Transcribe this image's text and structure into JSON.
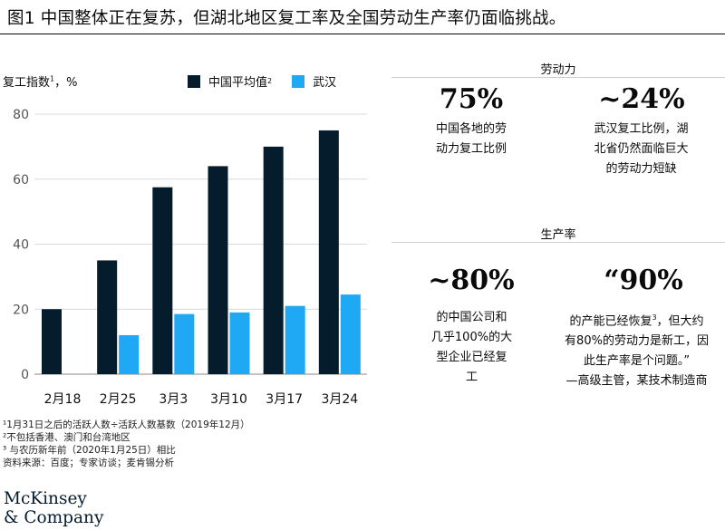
{
  "title": "图1  中国整体正在复苏，但湖北地区复工率及全国劳动生产率仍面临挑战。",
  "chart_data": {
    "type": "bar",
    "ylabel": "复工指数",
    "ylabel_sup": "1",
    "ylabel_unit": "，%",
    "categories": [
      "2月18",
      "2月25",
      "3月3",
      "3月10",
      "3月17",
      "3月24"
    ],
    "series": [
      {
        "name": "中国平均值",
        "name_sup": "2",
        "color": "#051c2c",
        "values": [
          20,
          35,
          57.5,
          64,
          70,
          75
        ]
      },
      {
        "name": "武汉",
        "color": "#1fa9f5",
        "values": [
          null,
          12,
          18.5,
          19,
          21,
          24.5
        ]
      }
    ],
    "ylim": [
      0,
      80
    ],
    "yticks": [
      0,
      20,
      40,
      60,
      80
    ],
    "grid": true,
    "legend": "top"
  },
  "panel": {
    "labor": {
      "heading": "劳动力",
      "stats": [
        {
          "value": "75%",
          "lines": [
            "中国各地的劳",
            "动力复工比例"
          ]
        },
        {
          "value": "~24%",
          "lines": [
            "武汉复工比例，湖",
            "北省仍然面临巨大",
            "的劳动力短缺"
          ]
        }
      ]
    },
    "productivity": {
      "heading": "生产率",
      "stats": [
        {
          "value": "~80%",
          "lines": [
            "的中国公司和",
            "几乎100%的大",
            "型企业已经复",
            "工"
          ]
        },
        {
          "value": "“90%",
          "lines": [
            "的产能已经恢复",
            "有80%的劳动力是新工，因",
            "此生产率是个问题。”",
            "—高级主管，某技术制造商"
          ],
          "line0_sup": "3",
          "line0_tail": "，但大约"
        }
      ]
    }
  },
  "footnotes": [
    "¹1月31日之后的活跃人数÷活跃人数基数（2019年12月）",
    "²不包括香港、澳门和台湾地区",
    "³ 与农历新年前（2020年1月25日）相比",
    "资料来源：百度；专家访谈；麦肯锡分析"
  ],
  "logo": [
    "McKinsey",
    "& Company"
  ]
}
